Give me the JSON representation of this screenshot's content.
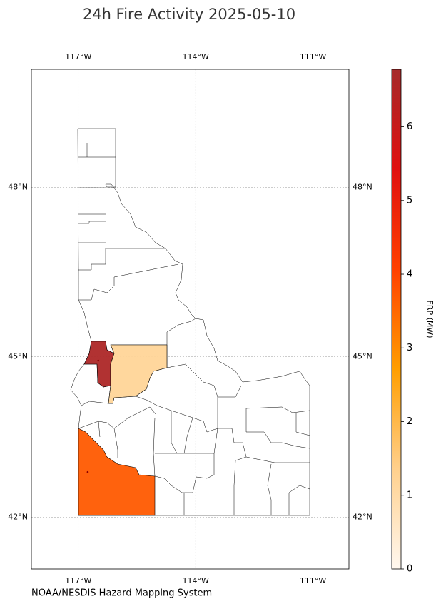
{
  "chart_data": {
    "type": "choropleth",
    "title": "24h Fire Activity 2025-05-10",
    "source": "NOAA/NESDIS Hazard Mapping System",
    "xlim": [
      -118.2,
      -110.08
    ],
    "ylim": [
      41.0,
      50.0
    ],
    "xticks": [
      {
        "value": -117,
        "label": "117°W"
      },
      {
        "value": -114,
        "label": "114°W"
      },
      {
        "value": -111,
        "label": "111°W"
      }
    ],
    "yticks": [
      {
        "value": 42,
        "label": "42°N"
      },
      {
        "value": 45,
        "label": "45°N"
      },
      {
        "value": 48,
        "label": "48°N"
      }
    ],
    "grid": true,
    "values": [
      6.6,
      1.2,
      3.7
    ],
    "points": {
      "x": [
        -116.49,
        -116.76
      ],
      "y": [
        44.93,
        42.86
      ],
      "color": "#8b0000"
    },
    "colorbar": {
      "label": "FRP (MW)",
      "clim": [
        0,
        6.78
      ],
      "ticks": [
        0,
        1,
        2,
        3,
        4,
        5,
        6
      ],
      "colormap": [
        "#fff8f0",
        "#ffd08c",
        "#ff9e00",
        "#ff4000",
        "#e01010",
        "#a52a2a"
      ]
    }
  }
}
